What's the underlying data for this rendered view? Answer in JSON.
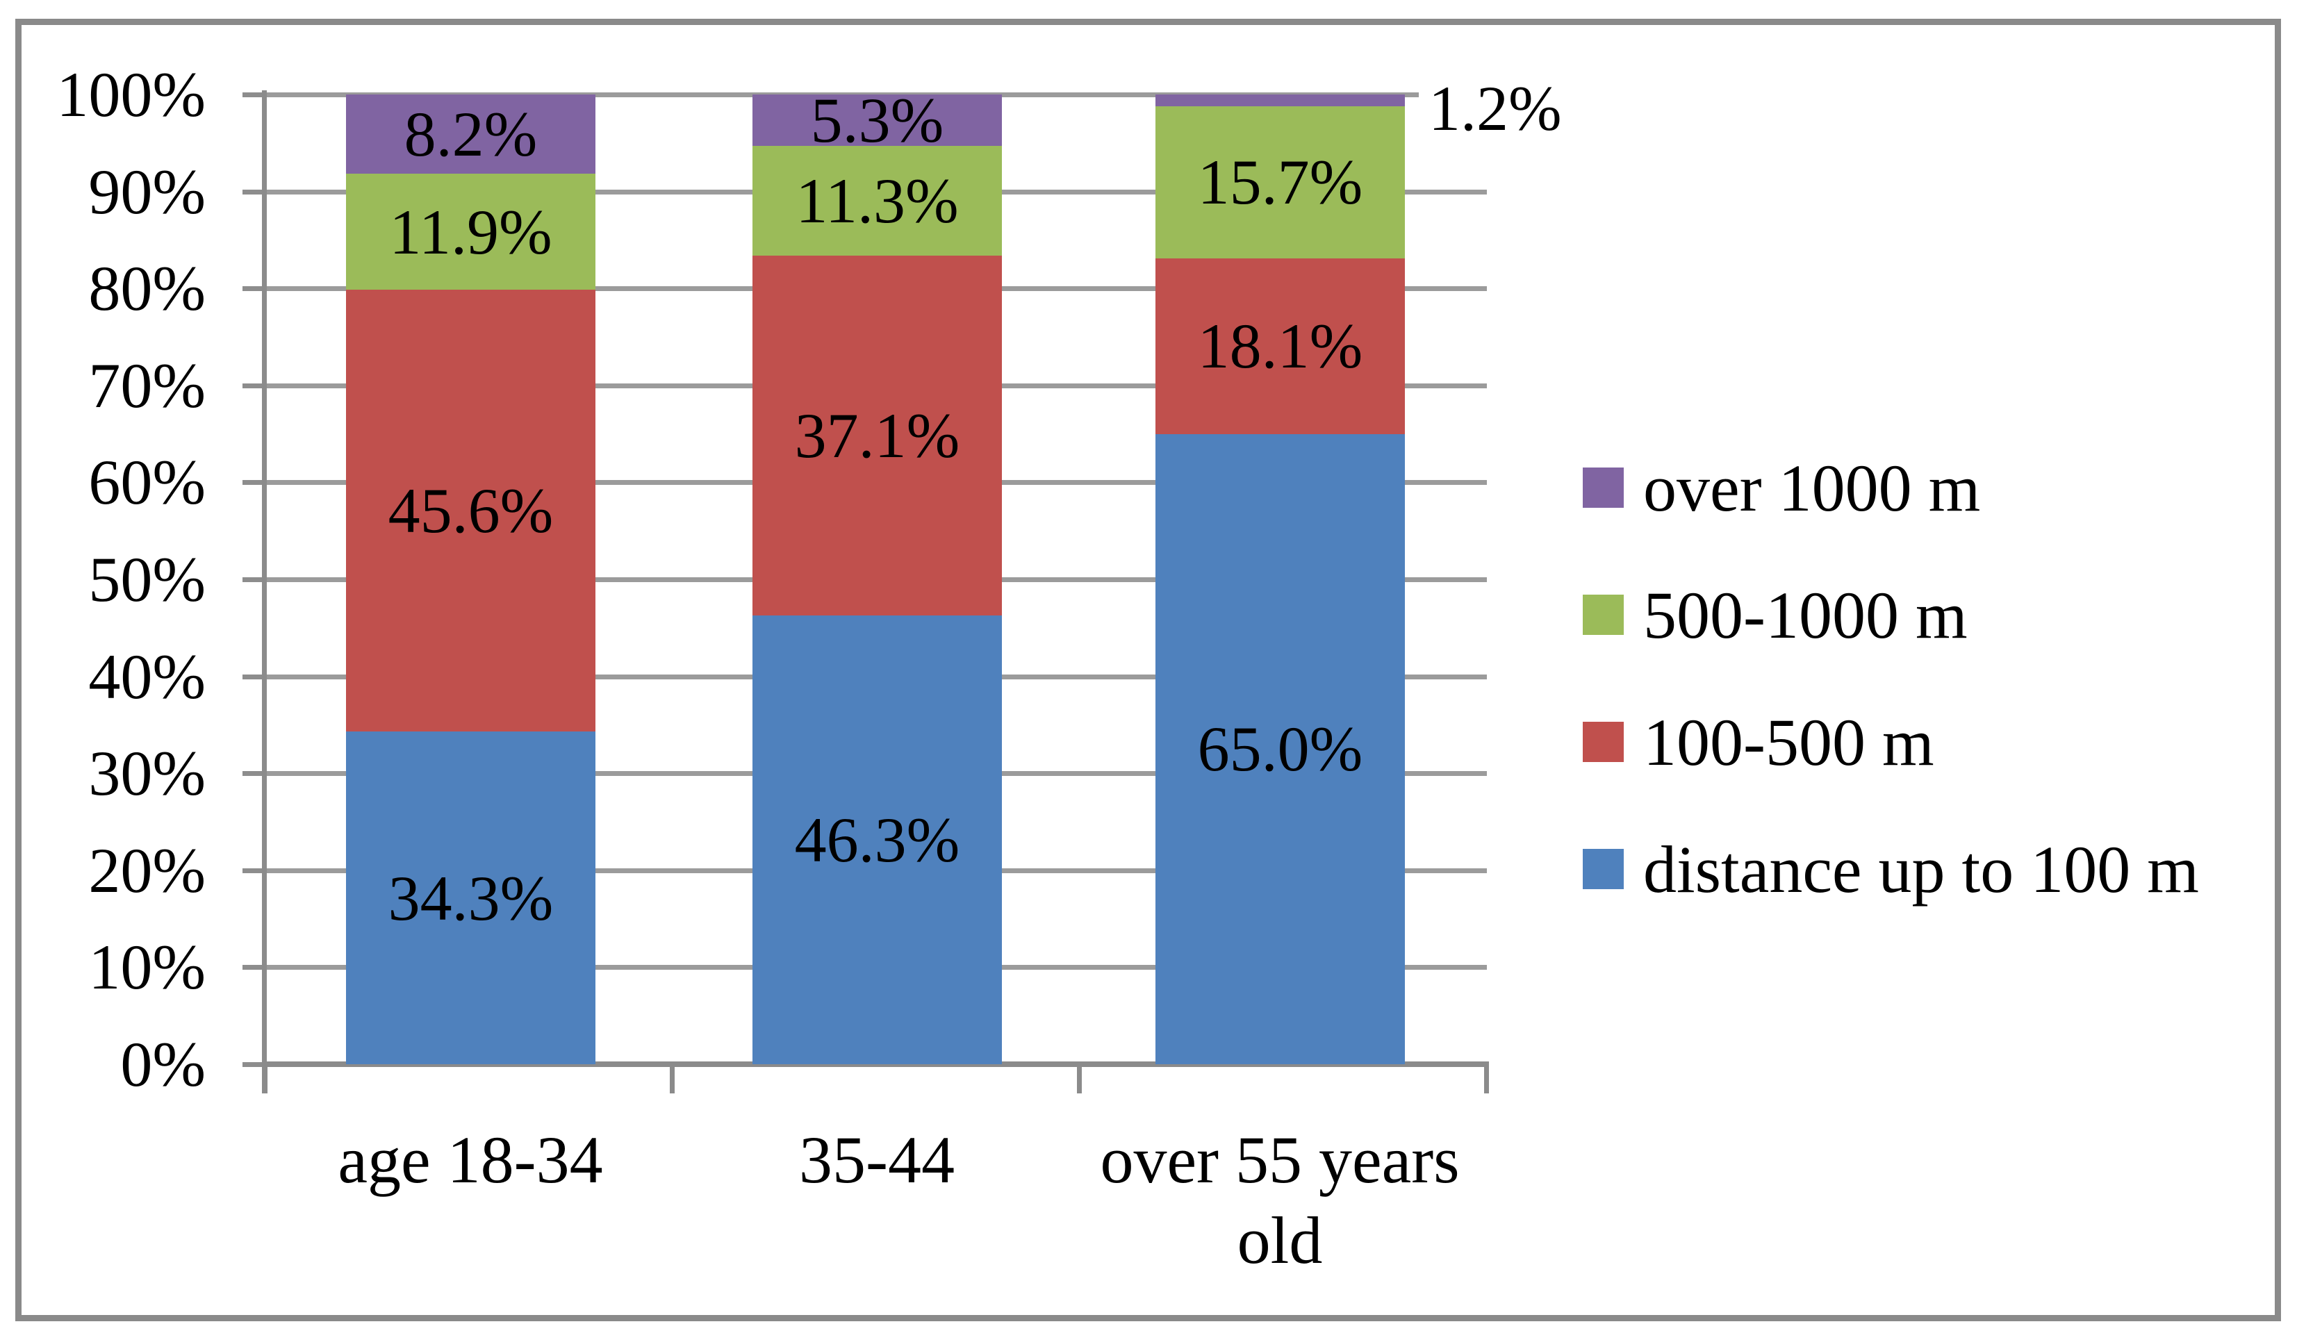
{
  "figure": {
    "background": "#ffffff",
    "frame_color": "#8a8a8a",
    "gridline_color": "#9b9b9b",
    "axis_color": "#8b8b8b"
  },
  "chart_data": {
    "type": "bar",
    "stacked": "100%",
    "grid": true,
    "categories": [
      "age 18-34",
      "35-44",
      "over 55 years old"
    ],
    "series": [
      {
        "name": "distance up to 100 m",
        "color": "#4F81BD",
        "values": [
          34.3,
          46.3,
          65.0
        ],
        "data_labels": [
          "34.3%",
          "46.3%",
          "65.0%"
        ]
      },
      {
        "name": "100-500 m",
        "color": "#C0504D",
        "values": [
          45.6,
          37.1,
          18.1
        ],
        "data_labels": [
          "45.6%",
          "37.1%",
          "18.1%"
        ]
      },
      {
        "name": "500-1000 m",
        "color": "#9BBB59",
        "values": [
          11.9,
          11.3,
          15.7
        ],
        "data_labels": [
          "11.9%",
          "11.3%",
          "15.7%"
        ]
      },
      {
        "name": "over 1000 m",
        "color": "#8064A2",
        "values": [
          8.2,
          5.3,
          1.2
        ],
        "data_labels": [
          "8.2%",
          "5.3%",
          null
        ]
      }
    ],
    "outside_label": {
      "text": "1.2%",
      "series": "over 1000 m",
      "category": "over 55 years old"
    },
    "y_axis": {
      "min": 0,
      "max": 100,
      "tick_labels": [
        "0%",
        "10%",
        "20%",
        "30%",
        "40%",
        "50%",
        "60%",
        "70%",
        "80%",
        "90%",
        "100%"
      ]
    },
    "legend": {
      "position": "right",
      "items": [
        {
          "label": "over 1000 m",
          "color": "#8064A2"
        },
        {
          "label": "500-1000 m",
          "color": "#9BBB59"
        },
        {
          "label": "100-500 m",
          "color": "#C0504D"
        },
        {
          "label": "distance up to 100 m",
          "color": "#4F81BD"
        }
      ]
    }
  }
}
